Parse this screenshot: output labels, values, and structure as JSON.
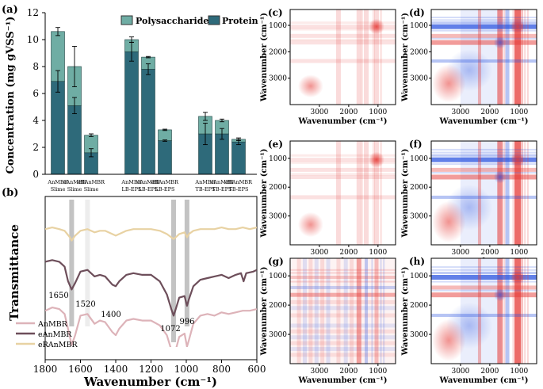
{
  "chart_data": [
    {
      "panel": "(a)",
      "type": "bar",
      "stacked": true,
      "ylabel": "Concentration (mg gVSS⁻¹)",
      "ylim": [
        0,
        12
      ],
      "yticks": [
        "0",
        "2",
        "4",
        "6",
        "8",
        "10",
        "12"
      ],
      "categories": [
        [
          "AnMBR",
          "Slime"
        ],
        [
          "eAnMBR",
          "Slime"
        ],
        [
          "eRAnMBR",
          "Slime"
        ],
        [
          "AnMBR",
          "LB-EPS"
        ],
        [
          "eAnMBR",
          "LB-EPS"
        ],
        [
          "eRAnMBR",
          "LB-EPS"
        ],
        [
          "AnMBR",
          "TB-EPS"
        ],
        [
          "eAnMBR",
          "TB-EPS"
        ],
        [
          "eRAnMBR",
          "TB-EPS"
        ]
      ],
      "series": [
        {
          "name": "Protein",
          "color": "#2e6a7a",
          "values": [
            6.9,
            5.1,
            1.6,
            9.1,
            7.8,
            2.5,
            3.0,
            3.0,
            2.4
          ],
          "err": [
            0.8,
            0.6,
            0.3,
            0.7,
            0.4,
            0.05,
            0.8,
            0.4,
            0.2
          ]
        },
        {
          "name": "Polysaccharide",
          "color": "#6fada4",
          "values": [
            3.7,
            2.9,
            1.3,
            0.9,
            0.9,
            0.8,
            1.3,
            1.0,
            0.2
          ],
          "err": [
            0.3,
            1.5,
            0.1,
            0.2,
            0.05,
            0.05,
            0.3,
            0.1,
            0.1
          ]
        }
      ],
      "legend": "top-right"
    },
    {
      "panel": "(b)",
      "type": "line",
      "xlabel": "Wavenumber (cm⁻¹)",
      "ylabel": "Transmittance",
      "xlim": [
        1800,
        600
      ],
      "xticks": [
        "1800",
        "1600",
        "1400",
        "1200",
        "1000",
        "800",
        "600"
      ],
      "series": [
        {
          "name": "AnMBR",
          "color": "#ddb3b9",
          "points": [
            [
              1800,
              0.3
            ],
            [
              1760,
              0.32
            ],
            [
              1720,
              0.31
            ],
            [
              1690,
              0.28
            ],
            [
              1660,
              0.14
            ],
            [
              1650,
              0.09
            ],
            [
              1630,
              0.15
            ],
            [
              1600,
              0.27
            ],
            [
              1560,
              0.28
            ],
            [
              1520,
              0.22
            ],
            [
              1490,
              0.24
            ],
            [
              1460,
              0.23
            ],
            [
              1420,
              0.17
            ],
            [
              1400,
              0.15
            ],
            [
              1380,
              0.19
            ],
            [
              1340,
              0.24
            ],
            [
              1300,
              0.25
            ],
            [
              1250,
              0.24
            ],
            [
              1200,
              0.24
            ],
            [
              1150,
              0.21
            ],
            [
              1110,
              0.15
            ],
            [
              1085,
              0.06
            ],
            [
              1072,
              0.02
            ],
            [
              1060,
              0.06
            ],
            [
              1040,
              0.14
            ],
            [
              1010,
              0.16
            ],
            [
              996,
              0.08
            ],
            [
              985,
              0.12
            ],
            [
              960,
              0.22
            ],
            [
              920,
              0.27
            ],
            [
              880,
              0.28
            ],
            [
              840,
              0.27
            ],
            [
              800,
              0.29
            ],
            [
              760,
              0.28
            ],
            [
              720,
              0.29
            ],
            [
              680,
              0.3
            ],
            [
              640,
              0.3
            ],
            [
              600,
              0.31
            ]
          ]
        },
        {
          "name": "eAnMBR",
          "color": "#6d4e5a",
          "points": [
            [
              1800,
              0.6
            ],
            [
              1760,
              0.61
            ],
            [
              1720,
              0.6
            ],
            [
              1690,
              0.57
            ],
            [
              1670,
              0.48
            ],
            [
              1650,
              0.43
            ],
            [
              1630,
              0.47
            ],
            [
              1600,
              0.54
            ],
            [
              1560,
              0.55
            ],
            [
              1520,
              0.51
            ],
            [
              1490,
              0.52
            ],
            [
              1460,
              0.51
            ],
            [
              1420,
              0.46
            ],
            [
              1400,
              0.45
            ],
            [
              1380,
              0.48
            ],
            [
              1340,
              0.52
            ],
            [
              1300,
              0.53
            ],
            [
              1250,
              0.52
            ],
            [
              1200,
              0.52
            ],
            [
              1150,
              0.48
            ],
            [
              1110,
              0.4
            ],
            [
              1085,
              0.31
            ],
            [
              1072,
              0.27
            ],
            [
              1060,
              0.31
            ],
            [
              1040,
              0.38
            ],
            [
              1010,
              0.39
            ],
            [
              996,
              0.33
            ],
            [
              985,
              0.37
            ],
            [
              960,
              0.45
            ],
            [
              920,
              0.49
            ],
            [
              880,
              0.5
            ],
            [
              840,
              0.51
            ],
            [
              800,
              0.52
            ],
            [
              760,
              0.5
            ],
            [
              720,
              0.52
            ],
            [
              690,
              0.53
            ],
            [
              675,
              0.48
            ],
            [
              660,
              0.53
            ],
            [
              620,
              0.54
            ],
            [
              600,
              0.55
            ]
          ]
        },
        {
          "name": "eRAnMBR",
          "color": "#e8d2a3",
          "points": [
            [
              1800,
              0.8
            ],
            [
              1760,
              0.81
            ],
            [
              1720,
              0.8
            ],
            [
              1690,
              0.79
            ],
            [
              1660,
              0.75
            ],
            [
              1650,
              0.73
            ],
            [
              1630,
              0.76
            ],
            [
              1600,
              0.79
            ],
            [
              1560,
              0.8
            ],
            [
              1520,
              0.78
            ],
            [
              1490,
              0.79
            ],
            [
              1460,
              0.79
            ],
            [
              1420,
              0.77
            ],
            [
              1400,
              0.76
            ],
            [
              1380,
              0.77
            ],
            [
              1340,
              0.79
            ],
            [
              1300,
              0.8
            ],
            [
              1250,
              0.8
            ],
            [
              1200,
              0.8
            ],
            [
              1150,
              0.79
            ],
            [
              1110,
              0.77
            ],
            [
              1085,
              0.75
            ],
            [
              1072,
              0.74
            ],
            [
              1060,
              0.75
            ],
            [
              1040,
              0.77
            ],
            [
              1010,
              0.78
            ],
            [
              996,
              0.75
            ],
            [
              985,
              0.77
            ],
            [
              960,
              0.79
            ],
            [
              920,
              0.8
            ],
            [
              880,
              0.8
            ],
            [
              840,
              0.8
            ],
            [
              800,
              0.81
            ],
            [
              760,
              0.8
            ],
            [
              720,
              0.8
            ],
            [
              680,
              0.81
            ],
            [
              640,
              0.8
            ],
            [
              600,
              0.81
            ]
          ]
        }
      ],
      "annotations": [
        {
          "text": "1650",
          "x": 1650
        },
        {
          "text": "1520",
          "x": 1520
        },
        {
          "text": "1400",
          "x": 1400
        },
        {
          "text": "1072",
          "x": 1072
        },
        {
          "text": "996",
          "x": 996
        }
      ],
      "highlight_bands": [
        1650,
        1560,
        1072,
        996
      ],
      "legend": "bottom-left"
    },
    {
      "panel": "(c)",
      "type": "heatmap",
      "style": "weak",
      "xlabel": "Wavenumber (cm⁻¹)",
      "ylabel": "Wavenumber (cm⁻¹)",
      "xticks": [
        "3000",
        "2000",
        "1000"
      ],
      "yticks": [
        "1000",
        "2000",
        "3000"
      ]
    },
    {
      "panel": "(d)",
      "type": "heatmap",
      "style": "strong",
      "xlabel": "Wavenumber (cm⁻¹)",
      "ylabel": "Wavenumber (cm⁻¹)",
      "xticks": [
        "3000",
        "2000",
        "1000"
      ],
      "yticks": [
        "1000",
        "2000",
        "3000"
      ]
    },
    {
      "panel": "(e)",
      "type": "heatmap",
      "style": "weak",
      "xlabel": "Wavenumber (cm⁻¹)",
      "ylabel": "Wavenumber (cm⁻¹)",
      "xticks": [
        "3000",
        "2000",
        "1000"
      ],
      "yticks": [
        "1000",
        "2000",
        "3000"
      ]
    },
    {
      "panel": "(f)",
      "type": "heatmap",
      "style": "strong",
      "xlabel": "Wavenumber (cm⁻¹)",
      "ylabel": "Wavenumber (cm⁻¹)",
      "xticks": [
        "3000",
        "2000",
        "1000"
      ],
      "yticks": [
        "1000",
        "2000",
        "3000"
      ]
    },
    {
      "panel": "(g)",
      "type": "heatmap",
      "style": "striped",
      "xlabel": "Wavenumber (cm⁻¹)",
      "ylabel": "Wavenumber (cm⁻¹)",
      "xticks": [
        "3000",
        "2000",
        "1000"
      ],
      "yticks": [
        "1000",
        "2000",
        "3000"
      ]
    },
    {
      "panel": "(h)",
      "type": "heatmap",
      "style": "strong",
      "xlabel": "Wavenumber (cm⁻¹)",
      "ylabel": "Wavenumber (cm⁻¹)",
      "xticks": [
        "3000",
        "2000",
        "1000"
      ],
      "yticks": [
        "1000",
        "2000",
        "3000"
      ]
    }
  ],
  "colors": {
    "heat_red": "#e53935",
    "heat_blue": "#2d55e0",
    "band_gray": "#b8b8b8"
  }
}
